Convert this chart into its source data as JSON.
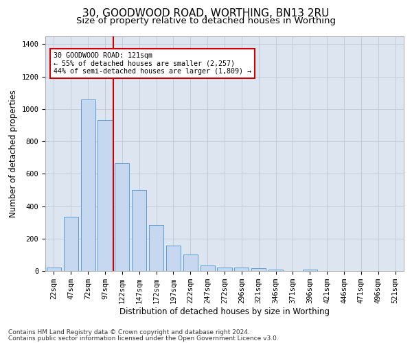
{
  "title": "30, GOODWOOD ROAD, WORTHING, BN13 2RU",
  "subtitle": "Size of property relative to detached houses in Worthing",
  "xlabel": "Distribution of detached houses by size in Worthing",
  "ylabel": "Number of detached properties",
  "footnote1": "Contains HM Land Registry data © Crown copyright and database right 2024.",
  "footnote2": "Contains public sector information licensed under the Open Government Licence v3.0.",
  "categories": [
    "22sqm",
    "47sqm",
    "72sqm",
    "97sqm",
    "122sqm",
    "147sqm",
    "172sqm",
    "197sqm",
    "222sqm",
    "247sqm",
    "272sqm",
    "296sqm",
    "321sqm",
    "346sqm",
    "371sqm",
    "396sqm",
    "421sqm",
    "446sqm",
    "471sqm",
    "496sqm",
    "521sqm"
  ],
  "values": [
    20,
    335,
    1060,
    930,
    665,
    500,
    285,
    155,
    100,
    35,
    20,
    20,
    15,
    10,
    0,
    10,
    0,
    0,
    0,
    0,
    0
  ],
  "bar_color": "#c5d8f0",
  "bar_edge_color": "#5b9bd5",
  "highlight_line_index": 4,
  "highlight_line_color": "#cc0000",
  "annotation_text": "30 GOODWOOD ROAD: 121sqm\n← 55% of detached houses are smaller (2,257)\n44% of semi-detached houses are larger (1,809) →",
  "annotation_box_color": "#cc0000",
  "ylim": [
    0,
    1450
  ],
  "yticks": [
    0,
    200,
    400,
    600,
    800,
    1000,
    1200,
    1400
  ],
  "grid_color": "#c0c8d8",
  "background_color": "#dde5f0",
  "title_fontsize": 11,
  "subtitle_fontsize": 9.5,
  "axis_label_fontsize": 8.5,
  "tick_fontsize": 7.5,
  "footnote_fontsize": 6.5
}
